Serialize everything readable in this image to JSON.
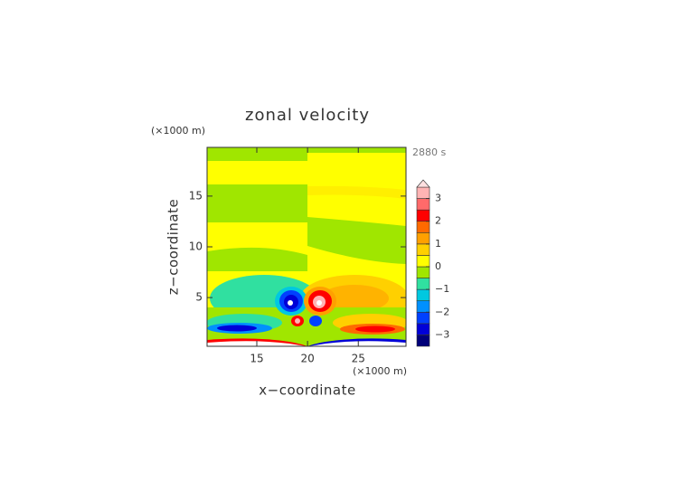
{
  "chart_data": {
    "type": "contour",
    "title": "zonal velocity",
    "x_label": "x−coordinate",
    "y_label": "z−coordinate",
    "x_unit": "(×1000 m)",
    "y_unit": "(×1000 m)",
    "time_label": "2880 s",
    "xlim": [
      10.1,
      29.7
    ],
    "ylim": [
      0.2,
      19.8
    ],
    "xticks": [
      15,
      20,
      25
    ],
    "yticks": [
      5,
      10,
      15
    ],
    "colorbar": {
      "levels": [
        -3.5,
        -3,
        -2.5,
        -2,
        -1.5,
        -1,
        -0.5,
        0,
        0.5,
        1,
        1.5,
        2,
        2.5,
        3,
        3.5
      ],
      "colors": [
        "#00007a",
        "#0000d8",
        "#0040ff",
        "#0090ff",
        "#00c8e0",
        "#30e0a0",
        "#a0e600",
        "#ffff00",
        "#ffd000",
        "#ffa000",
        "#ff6a00",
        "#ff0000",
        "#ff6a6a",
        "#ffb4b4"
      ],
      "extend_color": "#ffe0e0",
      "ticks": [
        {
          "value": -3,
          "label": "−3"
        },
        {
          "value": -2,
          "label": "−2"
        },
        {
          "value": -1,
          "label": "−1"
        },
        0,
        1,
        2,
        3
      ]
    }
  }
}
